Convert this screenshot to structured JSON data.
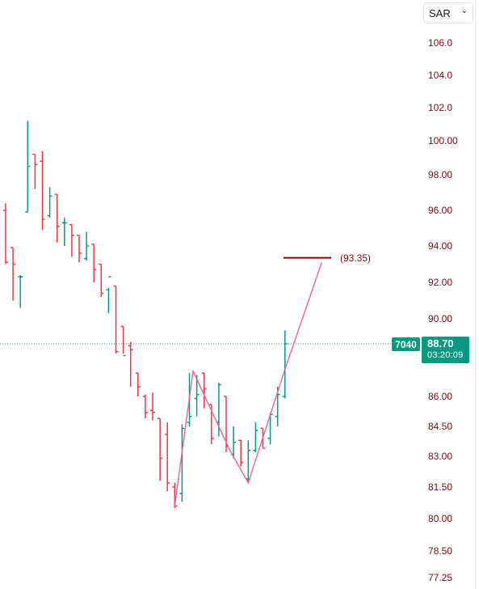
{
  "currency": {
    "value": "SAR",
    "icon": "chevron-down-icon"
  },
  "price_badge": {
    "code": "7040",
    "price": "88.70",
    "countdown": "03:20:09",
    "color": "#089981"
  },
  "projection": {
    "label": "(93.35)",
    "value": 93.35,
    "color": "#7c0a16"
  },
  "colors": {
    "up": "#089981",
    "down": "#f23645",
    "zigzag": "#f06292",
    "axis_text": "#7c0a16"
  },
  "chart_data": {
    "type": "ohlc",
    "y_tick_labels": [
      "106.0",
      "104.0",
      "102.0",
      "100.00",
      "98.00",
      "96.00",
      "94.00",
      "92.00",
      "90.00",
      "86.00",
      "84.50",
      "83.00",
      "81.50",
      "80.00",
      "78.50",
      "77.25"
    ],
    "y_tick_values": [
      106.0,
      104.0,
      102.0,
      100.0,
      98.0,
      96.0,
      94.0,
      92.0,
      90.0,
      86.0,
      84.5,
      83.0,
      81.5,
      80.0,
      78.5,
      77.25
    ],
    "current_price": 88.7,
    "bars": [
      {
        "o": 96.0,
        "h": 96.4,
        "l": 93.0,
        "c": 93.1
      },
      {
        "o": 93.9,
        "h": 93.9,
        "l": 91.0,
        "c": 93.0
      },
      {
        "o": 92.3,
        "h": 92.4,
        "l": 90.6,
        "c": 92.3
      },
      {
        "o": 95.9,
        "h": 101.2,
        "l": 95.9,
        "c": 98.5
      },
      {
        "o": 99.2,
        "h": 99.2,
        "l": 97.2,
        "c": 98.6
      },
      {
        "o": 98.8,
        "h": 99.4,
        "l": 94.9,
        "c": 95.5
      },
      {
        "o": 95.7,
        "h": 97.3,
        "l": 95.6,
        "c": 96.8
      },
      {
        "o": 96.9,
        "h": 96.9,
        "l": 94.2,
        "c": 95.1
      },
      {
        "o": 95.3,
        "h": 95.6,
        "l": 94.0,
        "c": 95.3
      },
      {
        "o": 95.2,
        "h": 95.2,
        "l": 93.4,
        "c": 94.6
      },
      {
        "o": 94.6,
        "h": 94.6,
        "l": 93.1,
        "c": 93.6
      },
      {
        "o": 93.3,
        "h": 94.8,
        "l": 93.2,
        "c": 94.0
      },
      {
        "o": 94.1,
        "h": 94.1,
        "l": 92.0,
        "c": 92.7
      },
      {
        "o": 93.0,
        "h": 93.0,
        "l": 91.2,
        "c": 91.4
      },
      {
        "o": 91.6,
        "h": 91.7,
        "l": 90.3,
        "c": 92.3
      },
      {
        "o": 91.8,
        "h": 91.8,
        "l": 88.2,
        "c": 88.3
      },
      {
        "o": 89.6,
        "h": 89.6,
        "l": 88.2,
        "c": 88.1
      },
      {
        "o": 88.6,
        "h": 88.8,
        "l": 86.5,
        "c": 88.4
      },
      {
        "o": 87.2,
        "h": 87.2,
        "l": 86.0,
        "c": 86.5
      },
      {
        "o": 86.0,
        "h": 86.1,
        "l": 84.9,
        "c": 85.2
      },
      {
        "o": 85.3,
        "h": 86.2,
        "l": 84.8,
        "c": 85.2
      },
      {
        "o": 84.9,
        "h": 84.9,
        "l": 81.8,
        "c": 82.9
      },
      {
        "o": 84.1,
        "h": 84.7,
        "l": 81.3,
        "c": 81.7
      },
      {
        "o": 81.5,
        "h": 81.7,
        "l": 80.5,
        "c": 80.6
      },
      {
        "o": 81.2,
        "h": 84.6,
        "l": 80.8,
        "c": 84.4
      },
      {
        "o": 84.7,
        "h": 87.2,
        "l": 84.5,
        "c": 85.0
      },
      {
        "o": 85.9,
        "h": 87.1,
        "l": 85.0,
        "c": 86.1
      },
      {
        "o": 87.2,
        "h": 87.2,
        "l": 85.4,
        "c": 86.4
      },
      {
        "o": 85.6,
        "h": 85.6,
        "l": 83.6,
        "c": 83.9
      },
      {
        "o": 84.7,
        "h": 86.7,
        "l": 84.0,
        "c": 86.6
      },
      {
        "o": 86.0,
        "h": 86.0,
        "l": 83.2,
        "c": 83.5
      },
      {
        "o": 83.1,
        "h": 84.5,
        "l": 82.9,
        "c": 83.7
      },
      {
        "o": 83.8,
        "h": 83.8,
        "l": 82.5,
        "c": 82.7
      },
      {
        "o": 81.9,
        "h": 83.8,
        "l": 81.7,
        "c": 83.3
      },
      {
        "o": 83.3,
        "h": 84.7,
        "l": 83.2,
        "c": 84.3
      },
      {
        "o": 84.4,
        "h": 84.4,
        "l": 83.4,
        "c": 83.4
      },
      {
        "o": 83.9,
        "h": 85.2,
        "l": 83.6,
        "c": 85.1
      },
      {
        "o": 85.0,
        "h": 86.5,
        "l": 84.5,
        "c": 86.1
      },
      {
        "o": 86.0,
        "h": 89.4,
        "l": 85.9,
        "c": 88.7
      }
    ],
    "zigzag": [
      {
        "bar": 23,
        "price": 80.6
      },
      {
        "bar": 25.5,
        "price": 87.3
      },
      {
        "bar": 30.5,
        "price": 83.3
      },
      {
        "bar": 33,
        "price": 81.7
      },
      {
        "bar": 38,
        "price": 87.4
      },
      {
        "bar": 43,
        "price": 93.1
      }
    ]
  }
}
